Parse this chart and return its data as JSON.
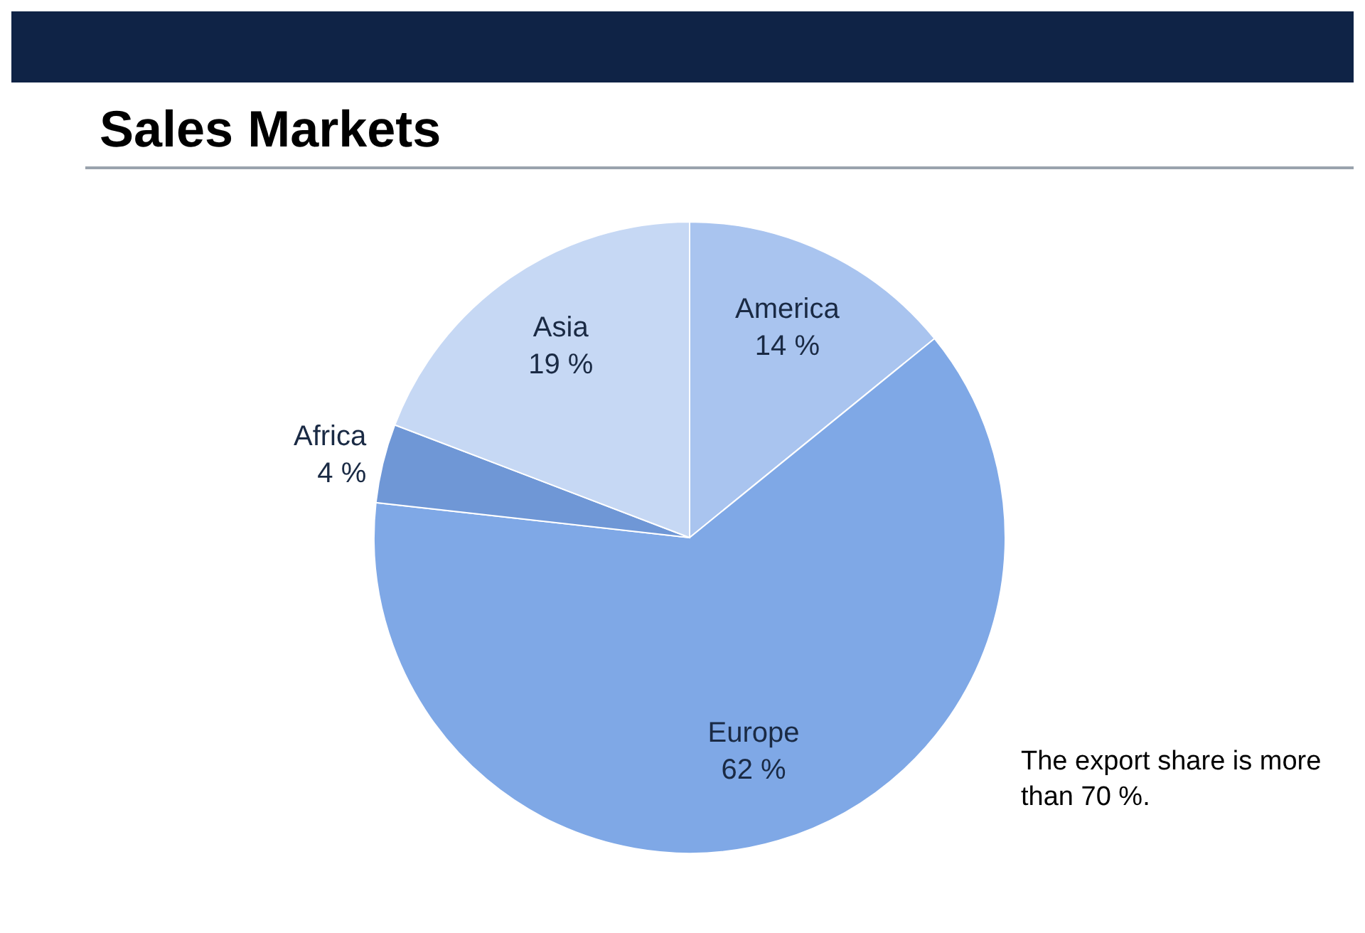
{
  "chart_data": {
    "type": "pie",
    "title": "Sales Markets",
    "categories": [
      "America",
      "Europe",
      "Africa",
      "Asia"
    ],
    "values": [
      14,
      62,
      4,
      19
    ],
    "value_labels": [
      "14 %",
      "62 %",
      "4 %",
      "19 %"
    ],
    "colors": [
      "#a9c4ef",
      "#7fa8e6",
      "#6f97d6",
      "#c6d8f4"
    ],
    "annotations": [
      "The export share is more than 70 %."
    ]
  }
}
